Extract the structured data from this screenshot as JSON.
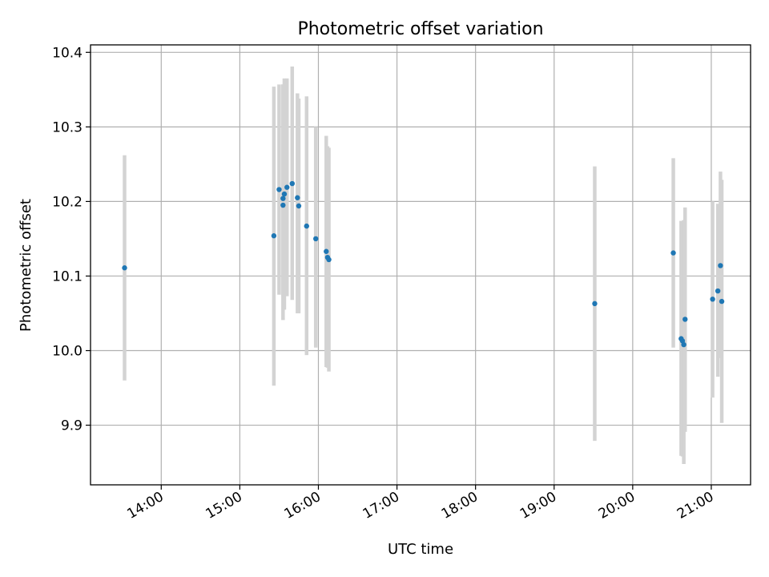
{
  "chart_data": {
    "type": "scatter",
    "title": "Photometric offset variation",
    "xlabel": "UTC time",
    "ylabel": "Photometric offset",
    "x_unit": "UTC time (HH:MM)",
    "xlim": [
      "13:06",
      "21:30"
    ],
    "ylim": [
      9.82,
      10.41
    ],
    "x_ticks": [
      "14:00",
      "15:00",
      "16:00",
      "17:00",
      "18:00",
      "19:00",
      "20:00",
      "21:00"
    ],
    "y_ticks": [
      9.9,
      10.0,
      10.1,
      10.2,
      10.3,
      10.4
    ],
    "y_tick_labels": [
      "9.9",
      "10.0",
      "10.1",
      "10.2",
      "10.3",
      "10.4"
    ],
    "grid": true,
    "errorbar_color": "#d3d3d3",
    "marker_color": "#1f77b4",
    "points": [
      {
        "x": "13:32",
        "y": 10.111,
        "ylow": 9.96,
        "yhigh": 10.262
      },
      {
        "x": "15:26",
        "y": 10.154,
        "ylow": 9.953,
        "yhigh": 10.354
      },
      {
        "x": "15:30",
        "y": 10.216,
        "ylow": 10.075,
        "yhigh": 10.357
      },
      {
        "x": "15:33",
        "y": 10.195,
        "ylow": 10.074,
        "yhigh": 10.357
      },
      {
        "x": "15:33",
        "y": 10.204,
        "ylow": 10.041,
        "yhigh": 10.357
      },
      {
        "x": "15:34",
        "y": 10.21,
        "ylow": 10.055,
        "yhigh": 10.365
      },
      {
        "x": "15:36",
        "y": 10.219,
        "ylow": 10.073,
        "yhigh": 10.365
      },
      {
        "x": "15:40",
        "y": 10.224,
        "ylow": 10.068,
        "yhigh": 10.381
      },
      {
        "x": "15:44",
        "y": 10.205,
        "ylow": 10.05,
        "yhigh": 10.345
      },
      {
        "x": "15:45",
        "y": 10.194,
        "ylow": 10.05,
        "yhigh": 10.338
      },
      {
        "x": "15:51",
        "y": 10.167,
        "ylow": 9.994,
        "yhigh": 10.341
      },
      {
        "x": "15:58",
        "y": 10.15,
        "ylow": 10.004,
        "yhigh": 10.3
      },
      {
        "x": "16:06",
        "y": 10.133,
        "ylow": 9.978,
        "yhigh": 10.288
      },
      {
        "x": "16:07",
        "y": 10.125,
        "ylow": 9.977,
        "yhigh": 10.274
      },
      {
        "x": "16:08",
        "y": 10.122,
        "ylow": 9.972,
        "yhigh": 10.272
      },
      {
        "x": "19:31",
        "y": 10.063,
        "ylow": 9.879,
        "yhigh": 10.247
      },
      {
        "x": "20:31",
        "y": 10.131,
        "ylow": 10.004,
        "yhigh": 10.258
      },
      {
        "x": "20:37",
        "y": 10.016,
        "ylow": 9.859,
        "yhigh": 10.174
      },
      {
        "x": "20:38",
        "y": 10.013,
        "ylow": 9.858,
        "yhigh": 10.17
      },
      {
        "x": "20:39",
        "y": 10.008,
        "ylow": 9.848,
        "yhigh": 10.175
      },
      {
        "x": "20:40",
        "y": 10.042,
        "ylow": 9.891,
        "yhigh": 10.192
      },
      {
        "x": "21:01",
        "y": 10.069,
        "ylow": 9.937,
        "yhigh": 10.2
      },
      {
        "x": "21:05",
        "y": 10.08,
        "ylow": 9.965,
        "yhigh": 10.197
      },
      {
        "x": "21:07",
        "y": 10.114,
        "ylow": 9.99,
        "yhigh": 10.24
      },
      {
        "x": "21:08",
        "y": 10.066,
        "ylow": 9.903,
        "yhigh": 10.229
      }
    ]
  }
}
